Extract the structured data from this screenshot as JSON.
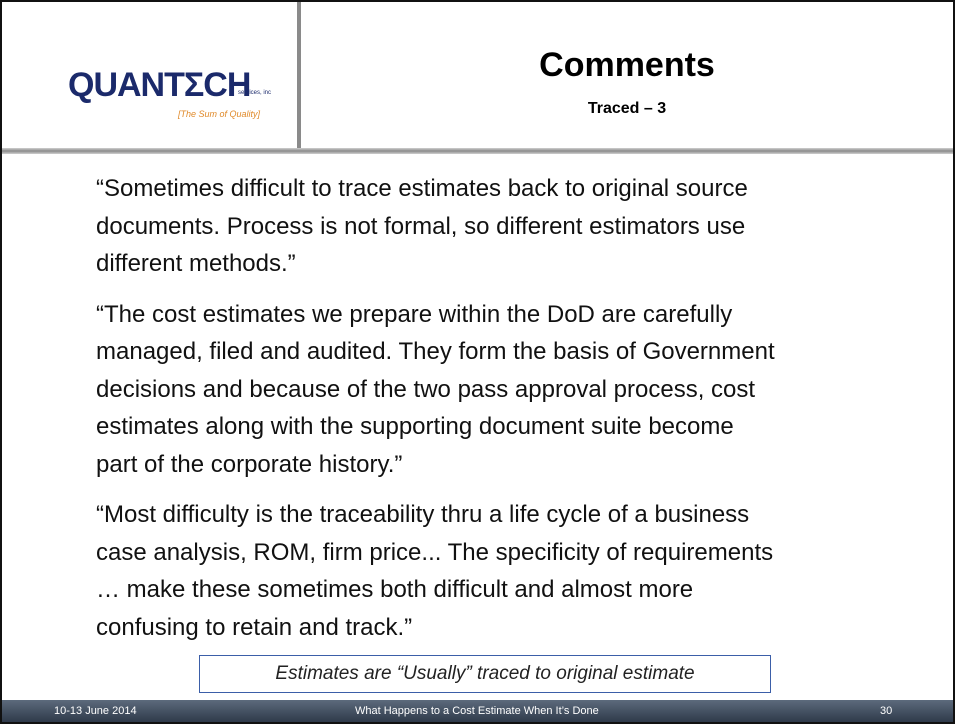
{
  "header": {
    "logo": {
      "name": "QUANTΣCH",
      "suffix": "services, inc",
      "tagline": "[The Sum of Quality]"
    },
    "title": "Comments",
    "subtitle": "Traced – 3"
  },
  "body": {
    "paragraphs": [
      [
        "“Sometimes difficult to trace estimates back to original source",
        "documents. Process is not formal, so different estimators use",
        "different methods.”"
      ],
      [
        "“The cost estimates we prepare within the DoD are carefully",
        "managed, filed and audited.  They form the basis of Government",
        "decisions and because of the two pass approval process, cost",
        "estimates along with the supporting document suite become",
        "part of the corporate history.”"
      ],
      [
        "“Most difficulty is the traceability thru a life cycle of a business",
        "case analysis, ROM, firm price... The specificity of requirements",
        "… make these sometimes both difficult and almost more",
        "confusing to retain and track.”"
      ]
    ],
    "callout": "Estimates are “Usually” traced to original estimate"
  },
  "footer": {
    "date": "10-13 June 2014",
    "title": "What Happens to a Cost Estimate When It’s Done",
    "page": "30"
  }
}
